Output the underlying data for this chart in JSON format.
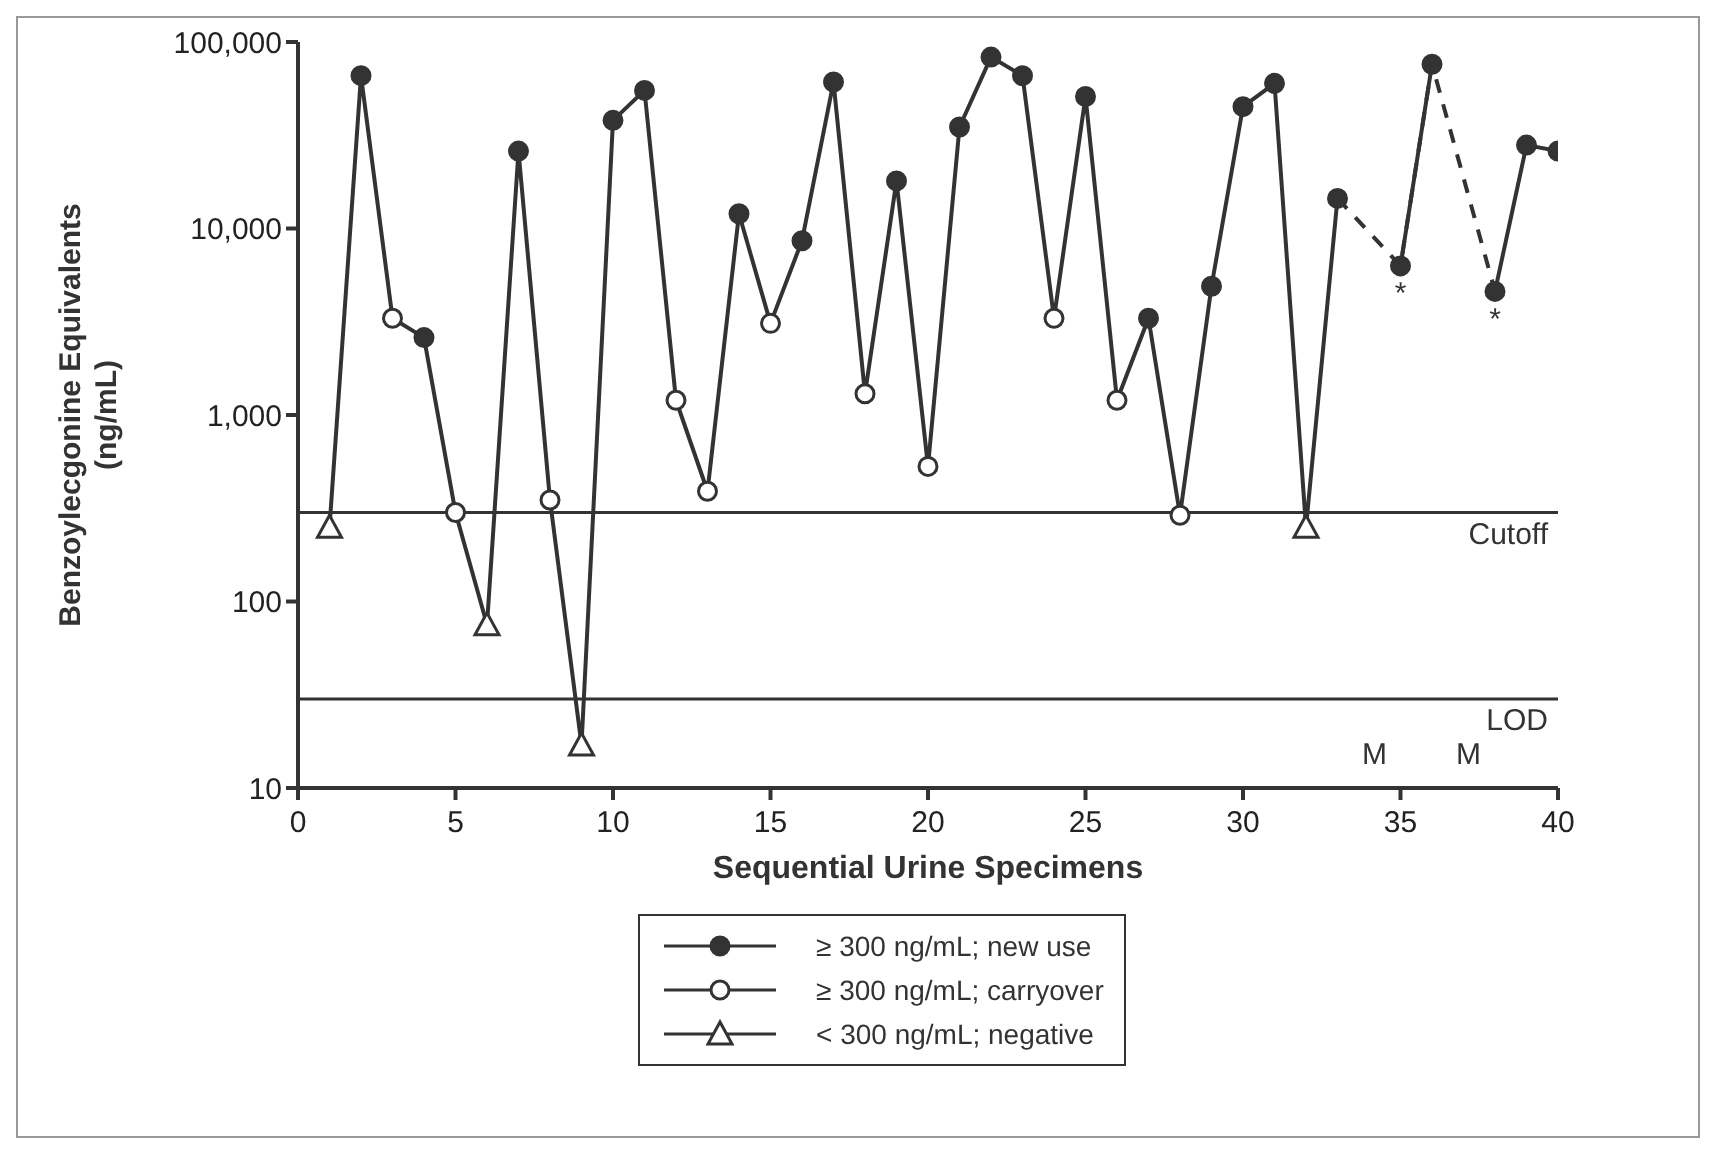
{
  "chart_data": {
    "type": "line",
    "xlabel": "Sequential Urine Specimens",
    "ylabel": "Benzoylecgonine Equivalents\n(ng/mL)",
    "x": [
      1,
      2,
      3,
      4,
      5,
      6,
      7,
      8,
      9,
      10,
      11,
      12,
      13,
      14,
      15,
      16,
      17,
      18,
      19,
      20,
      21,
      22,
      23,
      24,
      25,
      26,
      27,
      28,
      29,
      30,
      31,
      32,
      33,
      34,
      35,
      36,
      37,
      38,
      39,
      40
    ],
    "xlim": [
      0,
      40
    ],
    "xticks": [
      0,
      5,
      10,
      15,
      20,
      25,
      30,
      35,
      40
    ],
    "ylim": [
      10,
      100000
    ],
    "yticks": [
      10,
      100,
      {
        "value": 1000,
        "label": "1,000"
      },
      {
        "value": 10000,
        "label": "10,000"
      },
      {
        "value": 100000,
        "label": "100,000"
      }
    ],
    "log": "y",
    "legend": "bottom",
    "series": [
      {
        "name": "≥ 300 ng/mL; new use",
        "type": "scatter",
        "marker": "circle",
        "color": "#333333",
        "values": [
          null,
          66000,
          null,
          2600,
          null,
          null,
          26000,
          null,
          null,
          38000,
          55000,
          null,
          null,
          12000,
          null,
          8600,
          61000,
          null,
          18000,
          null,
          35000,
          83000,
          66000,
          null,
          51000,
          null,
          3300,
          null,
          4900,
          45000,
          60000,
          null,
          14500,
          null,
          6300,
          76000,
          null,
          4600,
          28000,
          26000
        ]
      },
      {
        "name": "≥ 300 ng/mL; carryover",
        "type": "scatter",
        "marker": "circle",
        "color": "#ffffff",
        "values": [
          null,
          null,
          3300,
          null,
          300,
          null,
          null,
          350,
          null,
          null,
          null,
          1200,
          390,
          null,
          3100,
          null,
          null,
          1300,
          null,
          530,
          null,
          null,
          null,
          3300,
          null,
          1200,
          null,
          290,
          null,
          null,
          null,
          null,
          null,
          null,
          null,
          null,
          null,
          null,
          null,
          null
        ]
      },
      {
        "name": "< 300 ng/mL; negative",
        "type": "scatter",
        "marker": "triangle",
        "color": "#ffffff",
        "values": [
          250,
          null,
          null,
          null,
          null,
          75,
          null,
          null,
          17,
          null,
          null,
          null,
          null,
          null,
          null,
          null,
          null,
          null,
          null,
          null,
          null,
          null,
          null,
          null,
          null,
          null,
          null,
          null,
          null,
          null,
          null,
          250,
          null,
          null,
          null,
          null,
          null,
          null,
          null,
          null
        ]
      },
      {
        "marker": "none",
        "line_style": "dashed",
        "color": "#333333",
        "x": [
          33,
          35,
          36,
          38
        ],
        "values": [
          14500,
          6300,
          76000,
          4600
        ]
      },
      {
        "marker": "none",
        "line_style": "solid",
        "color": "#333333",
        "values": [
          250,
          66000,
          3300,
          2600,
          300,
          75,
          26000,
          350,
          17,
          38000,
          55000,
          1200,
          390,
          12000,
          3100,
          8600,
          61000,
          1300,
          18000,
          530,
          35000,
          83000,
          66000,
          3300,
          51000,
          1200,
          3300,
          290,
          4900,
          45000,
          60000,
          250,
          14500,
          null,
          6300,
          76000,
          null,
          4600,
          28000,
          26000
        ]
      }
    ],
    "ref_lines": [
      {
        "axis": "y",
        "value": 300,
        "label": "Cutoff",
        "color": "#333333"
      },
      {
        "axis": "y",
        "value": 30,
        "label": "LOD",
        "color": "#333333"
      }
    ],
    "annotations": [
      {
        "text": "*",
        "x": 35,
        "y": 6300
      },
      {
        "text": "*",
        "x": 38,
        "y": 4600
      },
      "M",
      "M"
    ]
  }
}
